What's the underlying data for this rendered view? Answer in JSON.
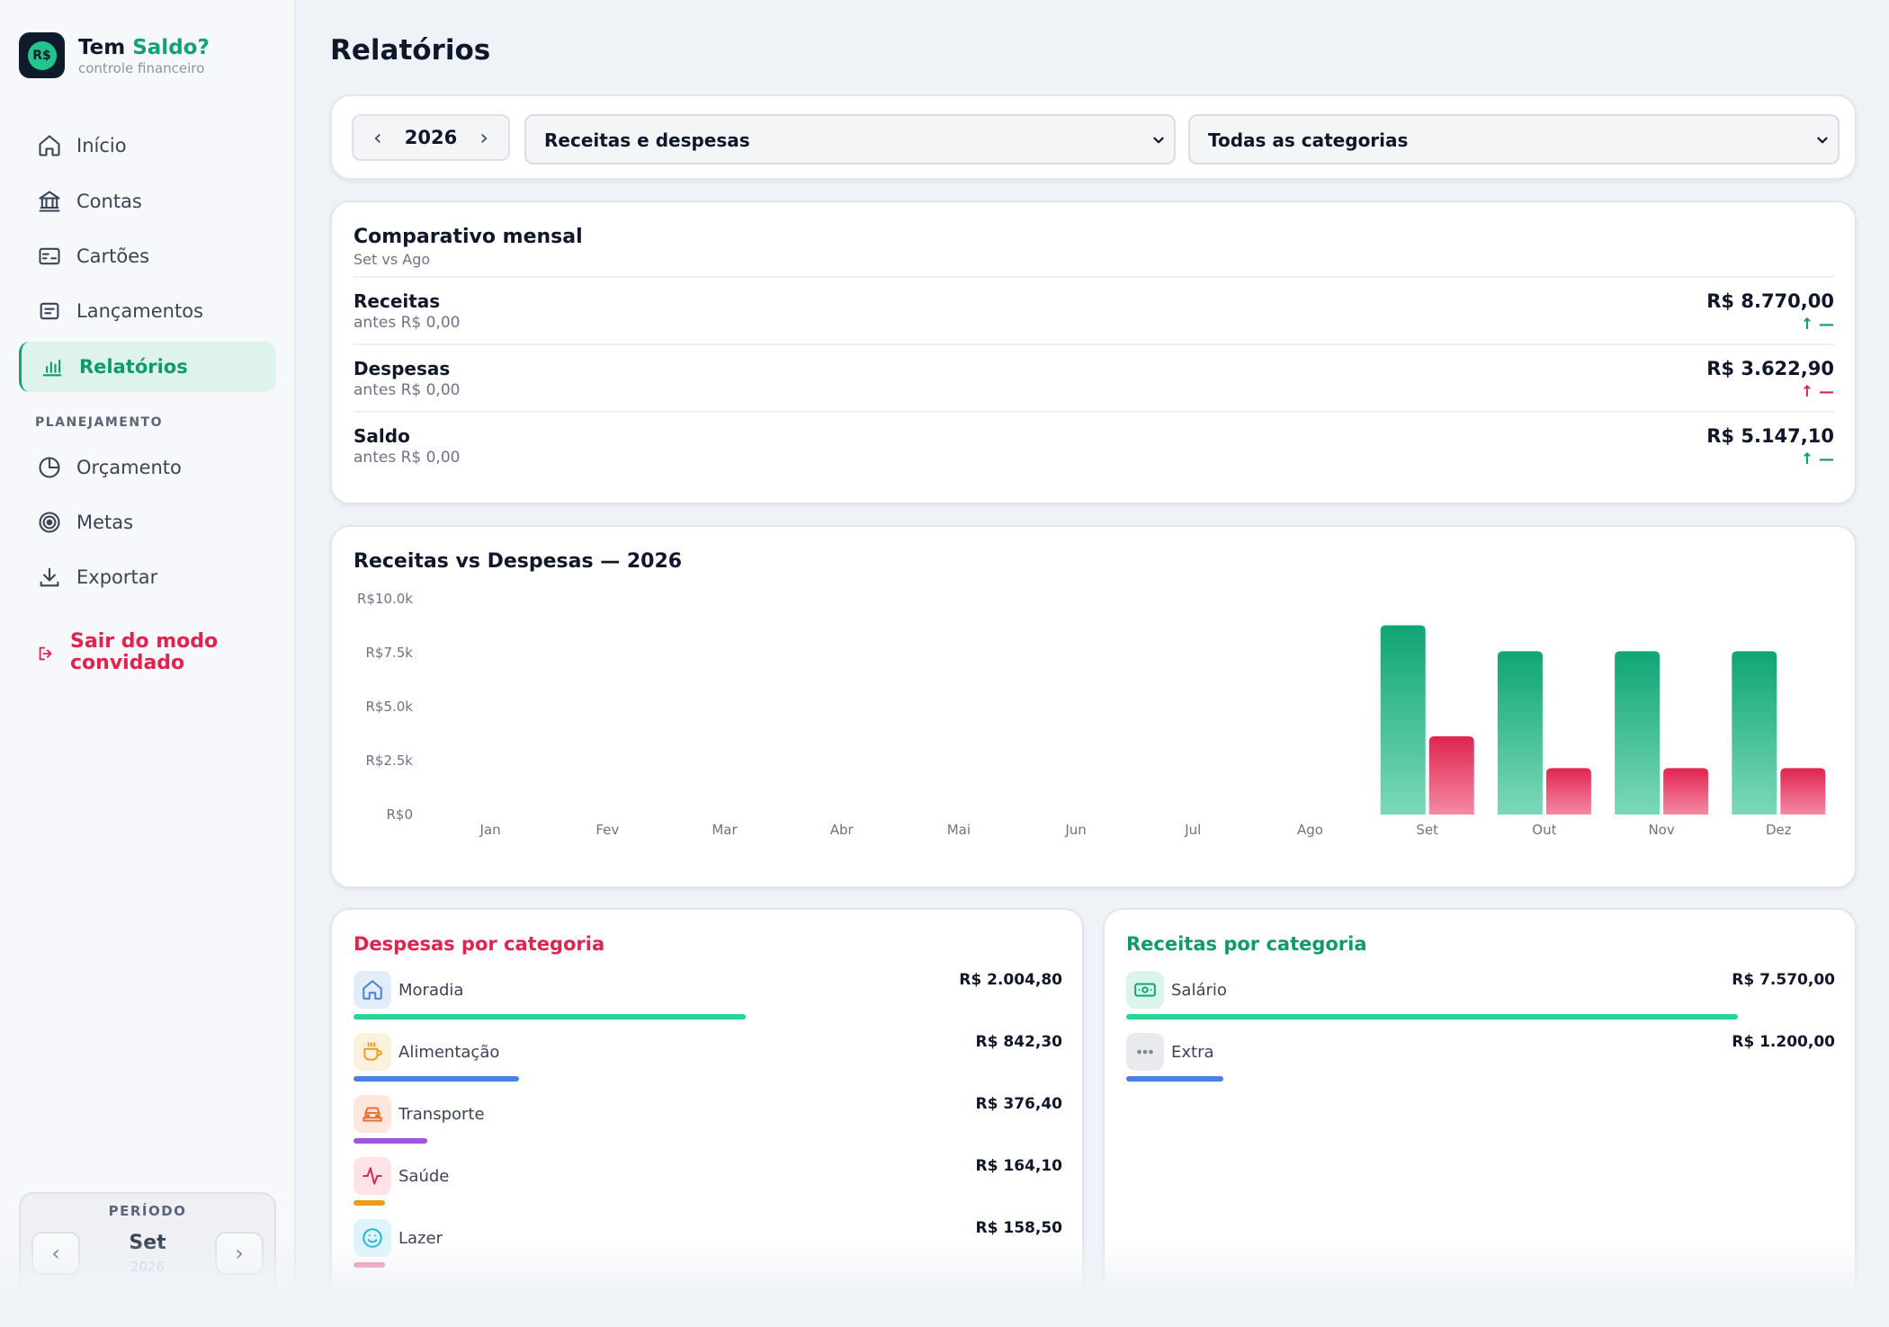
{
  "brand": {
    "name_part1": "Tem ",
    "name_part2": "Saldo?",
    "tagline": "controle financeiro",
    "logo_text": "R$"
  },
  "nav": {
    "items": [
      {
        "label": "Início",
        "icon": "home-icon"
      },
      {
        "label": "Contas",
        "icon": "bank-icon"
      },
      {
        "label": "Cartões",
        "icon": "card-icon"
      },
      {
        "label": "Lançamentos",
        "icon": "list-icon"
      },
      {
        "label": "Relatórios",
        "icon": "bar-chart-icon",
        "active": true
      }
    ],
    "section_label": "PLANEJAMENTO",
    "planning": [
      {
        "label": "Orçamento",
        "icon": "pie-icon"
      },
      {
        "label": "Metas",
        "icon": "target-icon"
      },
      {
        "label": "Exportar",
        "icon": "download-icon"
      }
    ],
    "logout_label": "Sair do modo convidado"
  },
  "period": {
    "label": "PERÍODO",
    "month": "Set",
    "year": "2026",
    "prev": "‹",
    "next": "›"
  },
  "page": {
    "title": "Relatórios"
  },
  "filters": {
    "year": "2026",
    "prev": "‹",
    "next": "›",
    "type": "Receitas e despesas",
    "category": "Todas as categorias"
  },
  "comparison": {
    "title": "Comparativo mensal",
    "subtitle": "Set vs Ago",
    "rows": [
      {
        "label": "Receitas",
        "before": "antes R$ 0,00",
        "value": "R$ 8.770,00",
        "trend": "↑ —",
        "trend_color": "#0e9a6a"
      },
      {
        "label": "Despesas",
        "before": "antes R$ 0,00",
        "value": "R$ 3.622,90",
        "trend": "↑ —",
        "trend_color": "#e0244f"
      },
      {
        "label": "Saldo",
        "before": "antes R$ 0,00",
        "value": "R$ 5.147,10",
        "trend": "↑ —",
        "trend_color": "#0e9a6a"
      }
    ]
  },
  "chart_data": {
    "type": "bar",
    "title": "Receitas vs Despesas — 2026",
    "categories": [
      "Jan",
      "Fev",
      "Mar",
      "Abr",
      "Mai",
      "Jun",
      "Jul",
      "Ago",
      "Set",
      "Out",
      "Nov",
      "Dez"
    ],
    "series": [
      {
        "values": [
          0,
          0,
          0,
          0,
          0,
          0,
          0,
          0,
          8770,
          7570,
          7570,
          7570
        ],
        "color": "#0fa574"
      },
      {
        "values": [
          0,
          0,
          0,
          0,
          0,
          0,
          0,
          0,
          3622.9,
          2150,
          2150,
          2150
        ],
        "color": "#e0244f"
      }
    ],
    "y_ticks": [
      "R$0",
      "R$2.5k",
      "R$5.0k",
      "R$7.5k",
      "R$10.0k"
    ],
    "ylim": [
      0,
      10000
    ]
  },
  "expenses": {
    "title": "Despesas por categoria",
    "items": [
      {
        "name": "Moradia",
        "value": "R$ 2.004,80",
        "share": 0.553,
        "color": "#22d694",
        "icon": "house-icon",
        "icon_bg": "#e2edfb",
        "icon_color": "#4a80d6"
      },
      {
        "name": "Alimentação",
        "value": "R$ 842,30",
        "share": 0.233,
        "color": "#4a80e0",
        "icon": "coffee-icon",
        "icon_bg": "#fdf0dc",
        "icon_color": "#ef9a1a"
      },
      {
        "name": "Transporte",
        "value": "R$ 376,40",
        "share": 0.104,
        "color": "#9f55e0",
        "icon": "car-icon",
        "icon_bg": "#fde6dc",
        "icon_color": "#ee6a2e"
      },
      {
        "name": "Saúde",
        "value": "R$ 164,10",
        "share": 0.045,
        "color": "#ef9a1a",
        "icon": "pulse-icon",
        "icon_bg": "#fde2e6",
        "icon_color": "#e0244f"
      },
      {
        "name": "Lazer",
        "value": "R$ 158,50",
        "share": 0.044,
        "color": "#f06e9a",
        "icon": "smile-icon",
        "icon_bg": "#dcf4fa",
        "icon_color": "#1eb4d2"
      }
    ]
  },
  "incomes": {
    "title": "Receitas por categoria",
    "items": [
      {
        "name": "Salário",
        "value": "R$ 7.570,00",
        "share": 0.863,
        "color": "#22d694",
        "icon": "cash-icon",
        "icon_bg": "#dcf5ec",
        "icon_color": "#11a373"
      },
      {
        "name": "Extra",
        "value": "R$ 1.200,00",
        "share": 0.137,
        "color": "#4a80e0",
        "icon": "dots-icon",
        "icon_bg": "#e8eaee",
        "icon_color": "#7a8394"
      }
    ]
  }
}
